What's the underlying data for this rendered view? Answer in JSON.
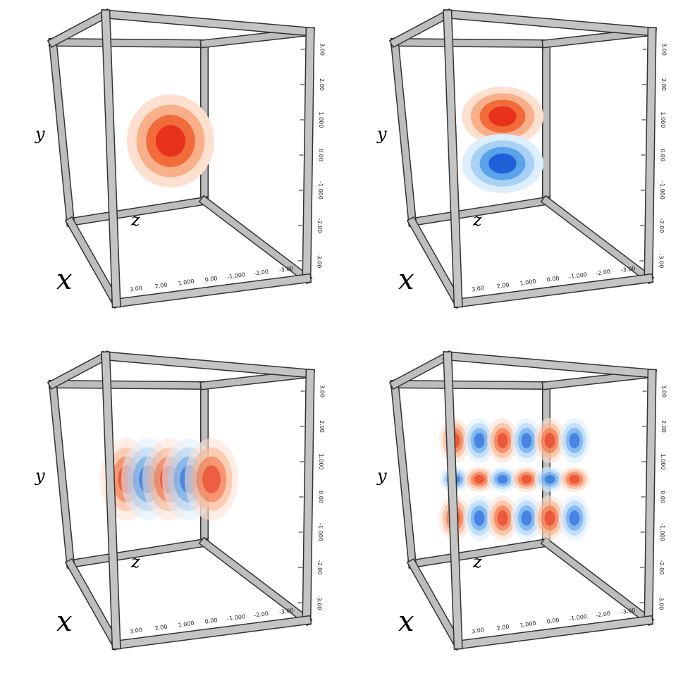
{
  "panels": [
    {
      "axis_labels": {
        "x": "x",
        "y": "y",
        "z": "z"
      }
    },
    {
      "axis_labels": {
        "x": "x",
        "y": "y",
        "z": "z"
      }
    },
    {
      "axis_labels": {
        "x": "x",
        "y": "y",
        "z": "z"
      }
    },
    {
      "axis_labels": {
        "x": "x",
        "y": "y",
        "z": "z"
      }
    }
  ],
  "tick_labels": {
    "vertical": [
      "3.00",
      "2.00",
      "1.000",
      "0.00",
      "-1.000",
      "-2.00",
      "-3.00"
    ],
    "horizontal": [
      "3.00",
      "2.00",
      "1.000",
      "0.00",
      "-1.000",
      "-2.00",
      "-3.00"
    ]
  }
}
